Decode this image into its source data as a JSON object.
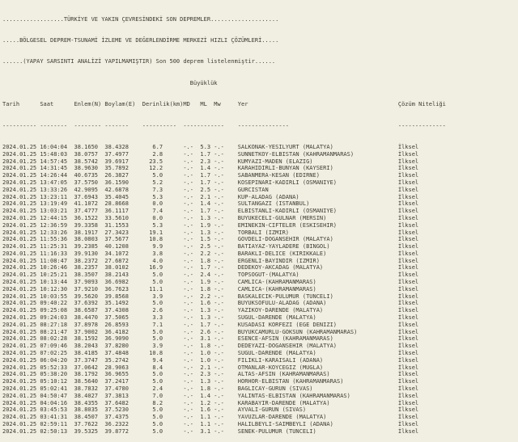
{
  "colors": {
    "background": "#f1eee2",
    "text": "#3c3c33"
  },
  "page": {
    "title_lines": [
      "..................TÜRKİYE VE YAKIN ÇEVRESİNDEKİ SON DEPREMLER....................",
      ".....BÖLGESEL DEPREM-TSUNAMİ İZLEME VE DEĞERLENDİRME MERKEZİ HIZLI ÇÖZÜMLERİ.....",
      "......(YAPAY SARSINTI ANALİZİ YAPILMAMIŞTIR) Son 500 deprem listelenmiştir......"
    ],
    "magnitude_group_label": "Büyüklük"
  },
  "table": {
    "columns": [
      {
        "label": "Tarih",
        "col": 0
      },
      {
        "label": "Saat",
        "col": 11
      },
      {
        "label": "Enlem(N)",
        "col": 21
      },
      {
        "label": "Boylam(E)",
        "col": 30
      },
      {
        "label": "Derinlik(km)",
        "col": 41
      },
      {
        "label": "MD",
        "col": 53
      },
      {
        "label": "ML",
        "col": 58
      },
      {
        "label": "Mw",
        "col": 62
      },
      {
        "label": "Yer",
        "col": 69
      },
      {
        "label": "Çözüm Niteliği",
        "col": 116
      }
    ],
    "magnitude_label_col": 55,
    "separator_segments": [
      {
        "text": "----------",
        "col": 0
      },
      {
        "text": "--------",
        "col": 11
      },
      {
        "text": "--------",
        "col": 21
      },
      {
        "text": "-------",
        "col": 30
      },
      {
        "text": "----------",
        "col": 41
      },
      {
        "text": "------------",
        "col": 53
      },
      {
        "text": "---------------",
        "col": 69
      },
      {
        "text": "--------------",
        "col": 116
      }
    ],
    "rows": [
      [
        "2024.01.25",
        "16:04:04",
        "38.1650",
        "38.4328",
        "6.7",
        "-.-",
        "5.3",
        "-.-",
        "SALKONAK-YESILYURT (MALATYA)",
        "İlksel"
      ],
      [
        "2024.01.25",
        "15:48:03",
        "38.0757",
        "37.4977",
        "2.8",
        "-.-",
        "1.7",
        "-.-",
        "SUNNETKOY-ELBISTAN (KAHRAMANMARAS)",
        "İlksel"
      ],
      [
        "2024.01.25",
        "14:57:45",
        "38.5742",
        "39.6917",
        "23.5",
        "-.-",
        "2.3",
        "-.-",
        "KUMYAZI-MADEN (ELAZIG)",
        "İlksel"
      ],
      [
        "2024.01.25",
        "14:31:45",
        "38.9630",
        "35.7892",
        "12.2",
        "-.-",
        "1.4",
        "-.-",
        "KARAHIDIRLI-BUNYAN (KAYSERI)",
        "İlksel"
      ],
      [
        "2024.01.25",
        "14:26:44",
        "40.6735",
        "26.3827",
        "5.0",
        "-.-",
        "1.7",
        "-.-",
        "SABANMERA-KESAN (EDIRNE)",
        "İlksel"
      ],
      [
        "2024.01.25",
        "13:47:05",
        "37.5750",
        "36.1590",
        "5.2",
        "-.-",
        "1.7",
        "-.-",
        "KOSEPINARI-KADIRLI (OSMANIYE)",
        "İlksel"
      ],
      [
        "2024.01.25",
        "13:33:26",
        "42.9095",
        "42.6878",
        "7.3",
        "-.-",
        "2.5",
        "-.-",
        "GURCISTAN",
        "İlksel"
      ],
      [
        "2024.01.25",
        "13:23:11",
        "37.6943",
        "35.4045",
        "5.3",
        "-.-",
        "2.1",
        "-.-",
        "KUP-ALADAG (ADANA)",
        "İlksel"
      ],
      [
        "2024.01.25",
        "13:19:49",
        "41.1072",
        "28.8668",
        "0.0",
        "-.-",
        "1.4",
        "-.-",
        "SULTANGAZI (ISTANBUL)",
        "İlksel"
      ],
      [
        "2024.01.25",
        "13:03:21",
        "37.4777",
        "36.1117",
        "7.4",
        "-.-",
        "1.7",
        "-.-",
        "ELBISTANLI-KADIRLI (OSMANIYE)",
        "İlksel"
      ],
      [
        "2024.01.25",
        "12:44:15",
        "36.1522",
        "33.5610",
        "0.0",
        "-.-",
        "1.3",
        "-.-",
        "BUYUKECELI-GULNAR (MERSIN)",
        "İlksel"
      ],
      [
        "2024.01.25",
        "12:36:59",
        "39.3358",
        "31.1553",
        "5.3",
        "-.-",
        "1.9",
        "-.-",
        "EMINEKIN-CIFTELER (ESKISEHIR)",
        "İlksel"
      ],
      [
        "2024.01.25",
        "12:33:26",
        "38.1917",
        "27.3423",
        "19.1",
        "-.-",
        "1.3",
        "-.-",
        "TORBALI (IZMIR)",
        "İlksel"
      ],
      [
        "2024.01.25",
        "11:55:36",
        "38.0803",
        "37.5677",
        "10.8",
        "-.-",
        "1.5",
        "-.-",
        "GOVDELI-DOGANSEHIR (MALATYA)",
        "İlksel"
      ],
      [
        "2024.01.25",
        "11:25:31",
        "39.2385",
        "40.1208",
        "9.9",
        "-.-",
        "2.5",
        "-.-",
        "BATIAYAZ-YAYLADERE (BINGOL)",
        "İlksel"
      ],
      [
        "2024.01.25",
        "11:16:33",
        "39.9130",
        "34.1072",
        "3.8",
        "-.-",
        "2.2",
        "-.-",
        "BARAKLI-DELICE (KIRIKKALE)",
        "İlksel"
      ],
      [
        "2024.01.25",
        "11:08:47",
        "38.2372",
        "27.6872",
        "4.0",
        "-.-",
        "1.8",
        "-.-",
        "ERGENLI-BAYINDIR (IZMIR)",
        "İlksel"
      ],
      [
        "2024.01.25",
        "10:26:46",
        "38.2357",
        "38.0102",
        "16.9",
        "-.-",
        "1.7",
        "-.-",
        "DEDEKOY-AKCADAG (MALATYA)",
        "İlksel"
      ],
      [
        "2024.01.25",
        "10:25:21",
        "38.3507",
        "38.2143",
        "5.0",
        "-.-",
        "2.4",
        "-.-",
        "TOPSOGUT-(MALATYA)",
        "İlksel"
      ],
      [
        "2024.01.25",
        "10:13:44",
        "37.9093",
        "36.6982",
        "5.0",
        "-.-",
        "1.9",
        "-.-",
        "CAMLICA-(KAHRAMANMARAS)",
        "İlksel"
      ],
      [
        "2024.01.25",
        "10:12:30",
        "37.9210",
        "36.7623",
        "11.1",
        "-.-",
        "1.8",
        "-.-",
        "CAMLICA-(KAHRAMANMARAS)",
        "İlksel"
      ],
      [
        "2024.01.25",
        "10:03:55",
        "39.5620",
        "39.8568",
        "3.9",
        "-.-",
        "2.2",
        "-.-",
        "BASKALECIK-PULUMUR (TUNCELI)",
        "İlksel"
      ],
      [
        "2024.01.25",
        "09:40:22",
        "37.6392",
        "35.1492",
        "5.0",
        "-.-",
        "1.6",
        "-.-",
        "BUYUKSOFULU-ALADAG (ADANA)",
        "İlksel"
      ],
      [
        "2024.01.25",
        "09:25:08",
        "38.6587",
        "37.4308",
        "2.6",
        "-.-",
        "1.3",
        "-.-",
        "YAZIKOY-DARENDE (MALATYA)",
        "İlksel"
      ],
      [
        "2024.01.25",
        "09:24:03",
        "38.4470",
        "37.5065",
        "3.3",
        "-.-",
        "1.3",
        "-.-",
        "SUGUL-DARENDE (MALATYA)",
        "İlksel"
      ],
      [
        "2024.01.25",
        "08:27:18",
        "37.8978",
        "26.8593",
        "7.1",
        "-.-",
        "1.7",
        "-.-",
        "KUSADASI KORFEZI (EGE DENIZI)",
        "İlksel"
      ],
      [
        "2024.01.25",
        "08:21:47",
        "37.9002",
        "36.4182",
        "5.0",
        "-.-",
        "2.6",
        "-.-",
        "BUYUKCAMURLU-GOKSUN (KAHRAMANMARAS)",
        "İlksel"
      ],
      [
        "2024.01.25",
        "08:02:28",
        "38.1592",
        "36.9090",
        "5.0",
        "-.-",
        "3.1",
        "-.-",
        "ESENCE-AFSIN (KAHRAMANMARAS)",
        "İlksel"
      ],
      [
        "2024.01.25",
        "07:09:46",
        "38.2043",
        "37.8280",
        "3.9",
        "-.-",
        "1.8",
        "-.-",
        "DEDEYAZI-DOGANSEHIR (MALATYA)",
        "İlksel"
      ],
      [
        "2024.01.25",
        "07:02:25",
        "38.4185",
        "37.4848",
        "10.8",
        "-.-",
        "1.0",
        "-.-",
        "SUGUL-DARENDE (MALATYA)",
        "İlksel"
      ],
      [
        "2024.01.25",
        "06:04:20",
        "37.3747",
        "35.2742",
        "9.4",
        "-.-",
        "1.0",
        "-.-",
        "FILIKLI-KARAISALI (ADANA)",
        "İlksel"
      ],
      [
        "2024.01.25",
        "05:52:33",
        "37.0642",
        "28.9063",
        "8.4",
        "-.-",
        "2.1",
        "-.-",
        "OTMANLAR-KOYCEGIZ (MUGLA)",
        "İlksel"
      ],
      [
        "2024.01.25",
        "05:38:20",
        "38.1792",
        "36.9655",
        "5.0",
        "-.-",
        "2.3",
        "-.-",
        "ALTAS-AFSIN (KAHRAMANMARAS)",
        "İlksel"
      ],
      [
        "2024.01.25",
        "05:10:12",
        "38.5640",
        "37.2417",
        "5.0",
        "-.-",
        "1.3",
        "-.-",
        "HORHOR-ELBISTAN (KAHRAMANMARAS)",
        "İlksel"
      ],
      [
        "2024.01.25",
        "05:02:41",
        "38.7832",
        "37.4780",
        "2.4",
        "-.-",
        "1.8",
        "-.-",
        "BAGLICAY-GURUN (SIVAS)",
        "İlksel"
      ],
      [
        "2024.01.25",
        "04:50:47",
        "38.4027",
        "37.3813",
        "7.0",
        "-.-",
        "1.4",
        "-.-",
        "YALINTAS-ELBISTAN (KAHRAMANMARAS)",
        "İlksel"
      ],
      [
        "2024.01.25",
        "04:04:16",
        "38.4355",
        "37.6482",
        "8.2",
        "-.-",
        "1.2",
        "-.-",
        "KARABAYIR-DARENDE (MALATYA)",
        "İlksel"
      ],
      [
        "2024.01.25",
        "03:45:53",
        "38.8035",
        "37.5230",
        "5.0",
        "-.-",
        "1.6",
        "-.-",
        "AYVALI-GURUN (SIVAS)",
        "İlksel"
      ],
      [
        "2024.01.25",
        "03:41:31",
        "38.4507",
        "37.4375",
        "5.0",
        "-.-",
        "1.1",
        "-.-",
        "YAVUZLAR-DARENDE (MALATYA)",
        "İlksel"
      ],
      [
        "2024.01.25",
        "02:59:11",
        "37.7622",
        "36.2322",
        "5.0",
        "-.-",
        "1.1",
        "-.-",
        "HALILBEYLI-SAIMBEYLI (ADANA)",
        "İlksel"
      ],
      [
        "2024.01.25",
        "02:50:13",
        "39.5325",
        "39.8772",
        "5.0",
        "-.-",
        "3.1",
        "-.-",
        "SENEK-PULUMUR (TUNCELI)",
        "İlksel"
      ]
    ]
  }
}
